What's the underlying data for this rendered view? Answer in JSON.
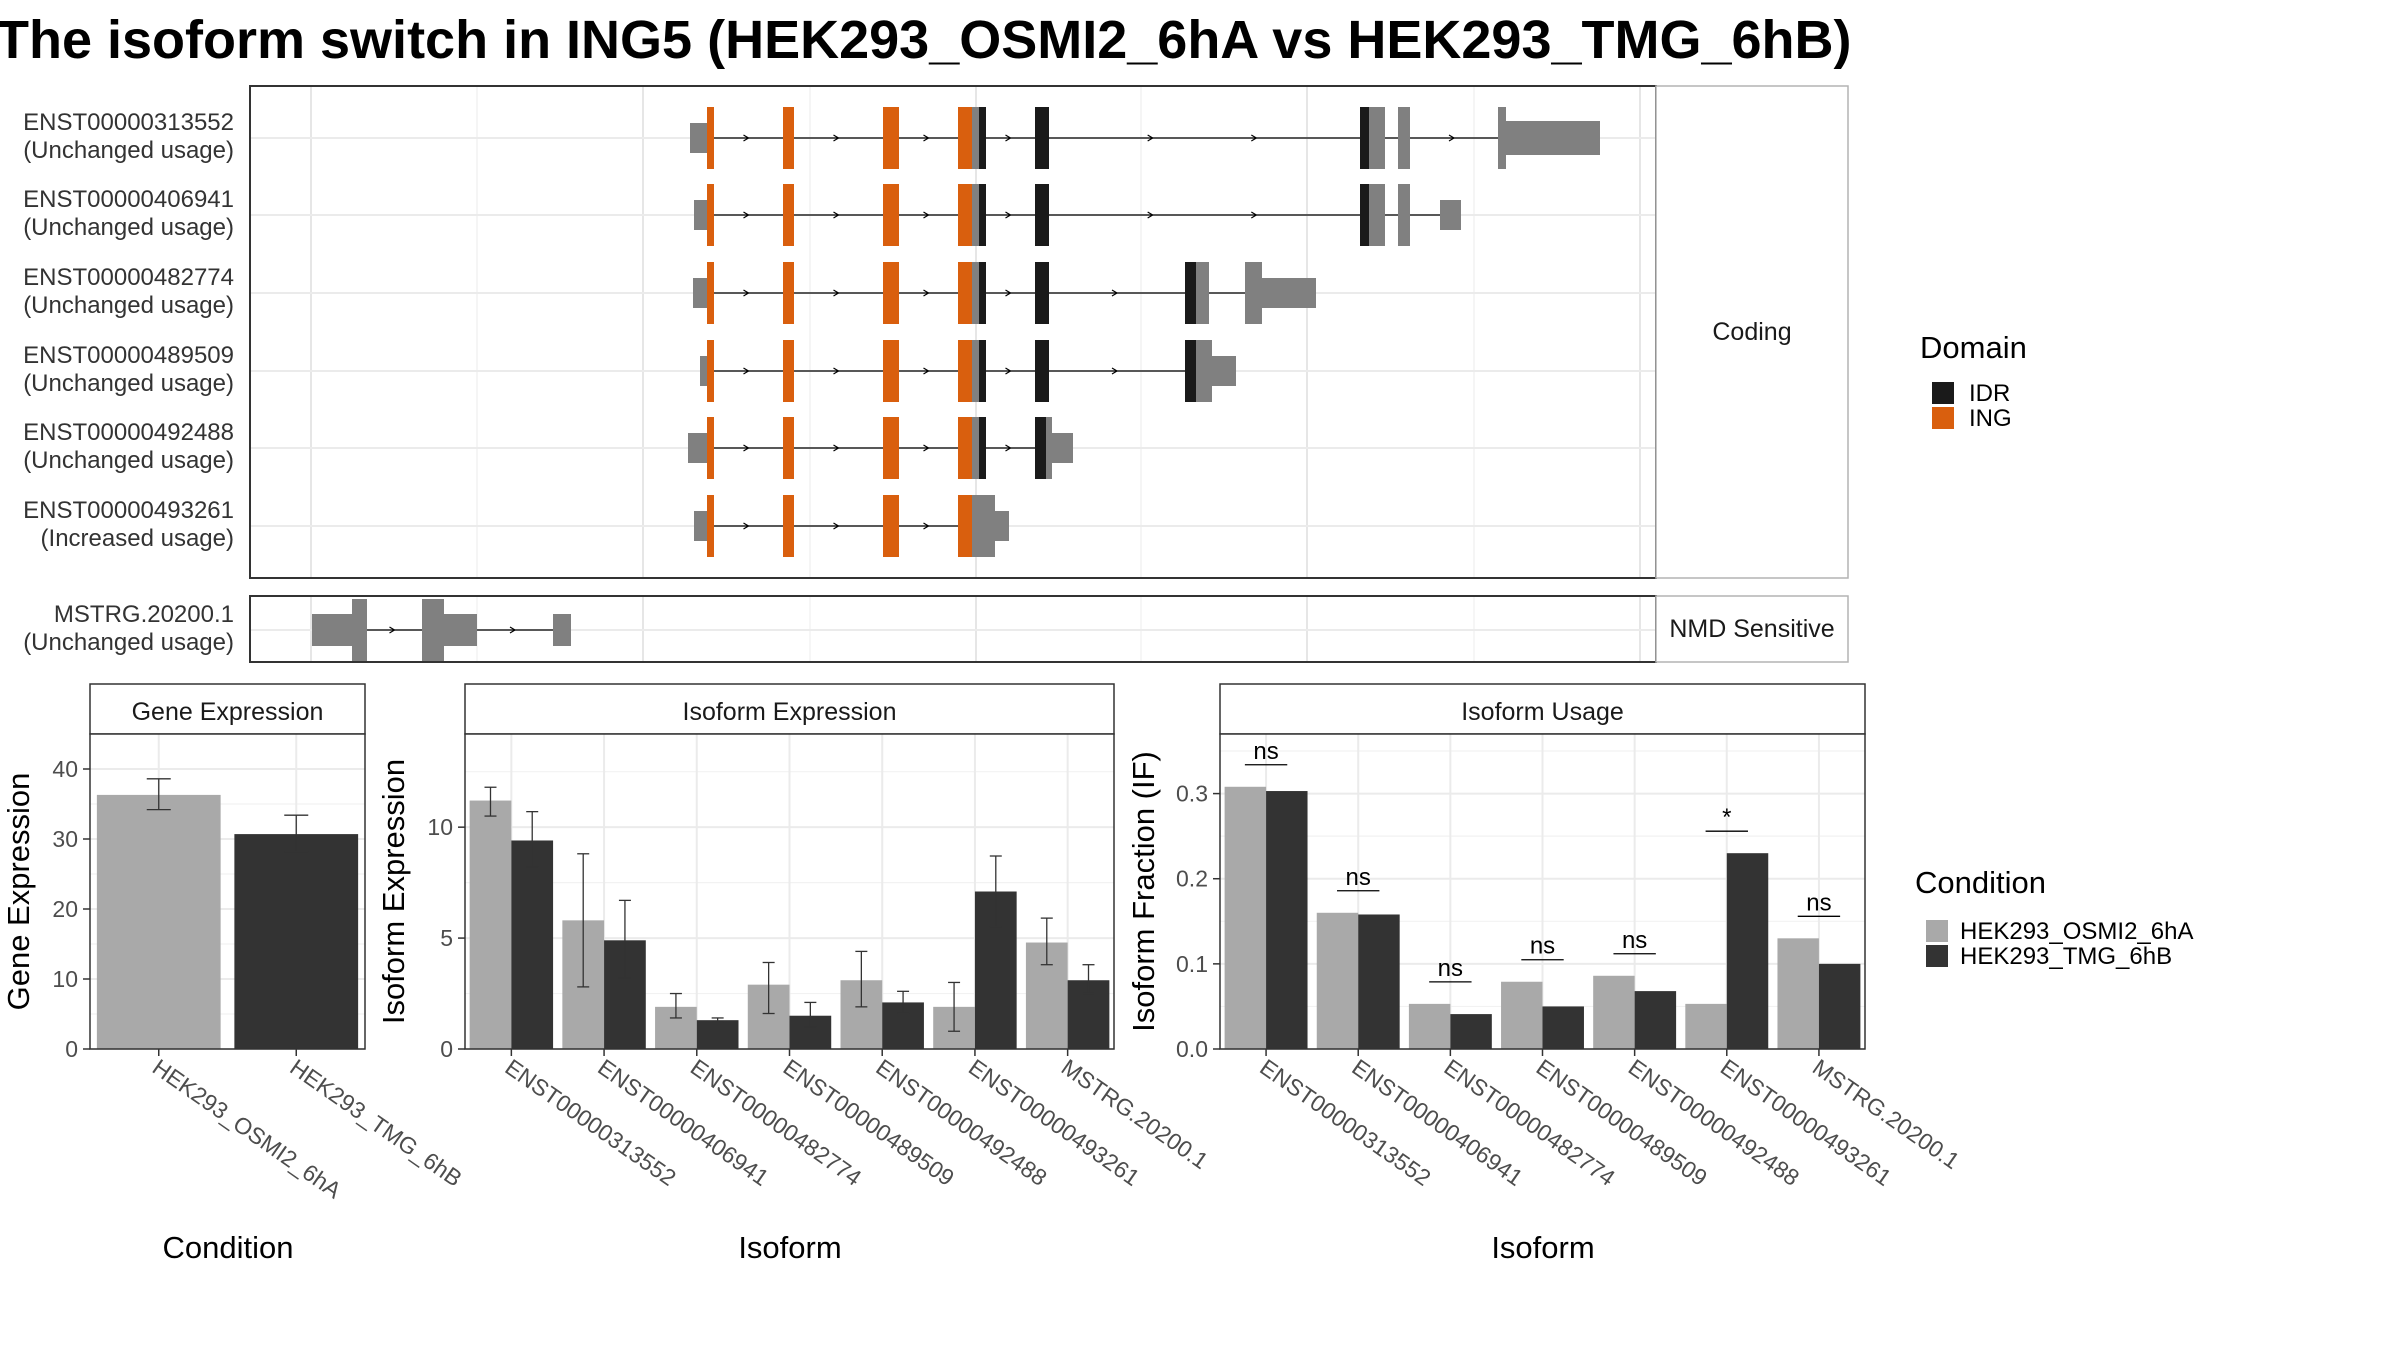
{
  "title": "The isoform switch in ING5 (HEK293_OSMI2_6hA vs HEK293_TMG_6hB)",
  "colors": {
    "exon": "#808080",
    "IDR": "#1a1a1a",
    "ING": "#d95f0e",
    "cond1": "#a9a9a9",
    "cond2": "#333333"
  },
  "structure": {
    "coding_label": "Coding",
    "nmd_label": "NMD Sensitive",
    "legend_title": "Domain",
    "legend": [
      {
        "name": "IDR",
        "color_key": "IDR"
      },
      {
        "name": "ING",
        "color_key": "ING"
      }
    ],
    "isoforms": [
      {
        "id": "ENST00000313552",
        "usage": "(Unchanged usage)",
        "group": "coding"
      },
      {
        "id": "ENST00000406941",
        "usage": "(Unchanged usage)",
        "group": "coding"
      },
      {
        "id": "ENST00000482774",
        "usage": "(Unchanged usage)",
        "group": "coding"
      },
      {
        "id": "ENST00000489509",
        "usage": "(Unchanged usage)",
        "group": "coding"
      },
      {
        "id": "ENST00000492488",
        "usage": "(Unchanged usage)",
        "group": "coding"
      },
      {
        "id": "ENST00000493261",
        "usage": "(Increased usage)",
        "group": "coding"
      },
      {
        "id": "MSTRG.20200.1",
        "usage": "(Unchanged usage)",
        "group": "nmd"
      }
    ]
  },
  "chart_data": [
    {
      "type": "bar",
      "title": "Gene Expression",
      "xlabel": "Condition",
      "ylabel": "Gene Expression",
      "categories": [
        "HEK293_OSMI2_6hA",
        "HEK293_TMG_6hB"
      ],
      "values": [
        36.3,
        30.7
      ],
      "errors": [
        [
          34.2,
          38.6
        ],
        [
          28.2,
          33.4
        ]
      ],
      "yticks": [
        0,
        10,
        20,
        30,
        40
      ],
      "ylim": [
        0,
        45
      ],
      "grid": true
    },
    {
      "type": "bar",
      "title": "Isoform Expression",
      "xlabel": "Isoform",
      "ylabel": "Isoform Expression",
      "categories": [
        "ENST00000313552",
        "ENST00000406941",
        "ENST00000482774",
        "ENST00000489509",
        "ENST00000492488",
        "ENST00000493261",
        "MSTRG.20200.1"
      ],
      "series": [
        {
          "name": "HEK293_OSMI2_6hA",
          "values": [
            11.2,
            5.8,
            1.9,
            2.9,
            3.1,
            1.9,
            4.8
          ],
          "errors": [
            [
              10.5,
              11.8
            ],
            [
              2.8,
              8.8
            ],
            [
              1.4,
              2.5
            ],
            [
              1.6,
              3.9
            ],
            [
              1.9,
              4.4
            ],
            [
              0.8,
              3.0
            ],
            [
              3.8,
              5.9
            ]
          ]
        },
        {
          "name": "HEK293_TMG_6hB",
          "values": [
            9.4,
            4.9,
            1.3,
            1.5,
            2.1,
            7.1,
            3.1
          ],
          "errors": [
            [
              8.2,
              10.7
            ],
            [
              3.2,
              6.7
            ],
            [
              1.2,
              1.4
            ],
            [
              1.0,
              2.1
            ],
            [
              1.6,
              2.6
            ],
            [
              5.5,
              8.7
            ],
            [
              2.5,
              3.8
            ]
          ]
        }
      ],
      "yticks": [
        0,
        5,
        10
      ],
      "ylim": [
        0,
        14.2
      ],
      "grid": true
    },
    {
      "type": "bar",
      "title": "Isoform Usage",
      "xlabel": "Isoform",
      "ylabel": "Isoform Fraction (IF)",
      "categories": [
        "ENST00000313552",
        "ENST00000406941",
        "ENST00000482774",
        "ENST00000489509",
        "ENST00000492488",
        "ENST00000493261",
        "MSTRG.20200.1"
      ],
      "series": [
        {
          "name": "HEK293_OSMI2_6hA",
          "values": [
            0.308,
            0.16,
            0.053,
            0.079,
            0.086,
            0.053,
            0.13
          ]
        },
        {
          "name": "HEK293_TMG_6hB",
          "values": [
            0.303,
            0.158,
            0.041,
            0.05,
            0.068,
            0.23,
            0.1
          ]
        }
      ],
      "significance": [
        "ns",
        "ns",
        "ns",
        "ns",
        "ns",
        "*",
        "ns"
      ],
      "yticks": [
        0.0,
        0.1,
        0.2,
        0.3
      ],
      "ytick_labels": [
        "0.0",
        "0.1",
        "0.2",
        "0.3"
      ],
      "ylim": [
        0,
        0.37
      ],
      "grid": true
    }
  ],
  "condition_legend": {
    "title": "Condition",
    "entries": [
      {
        "name": "HEK293_OSMI2_6hA",
        "color_key": "cond1"
      },
      {
        "name": "HEK293_TMG_6hB",
        "color_key": "cond2"
      }
    ]
  }
}
